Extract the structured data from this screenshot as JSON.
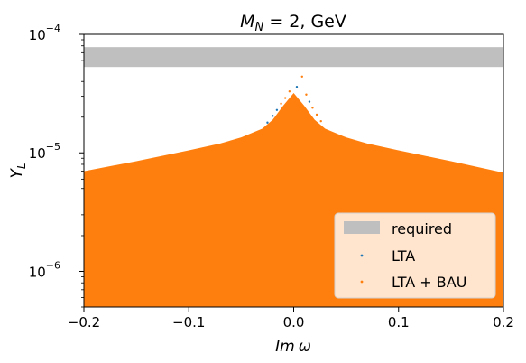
{
  "chart_data": {
    "type": "scatter",
    "title": "M_N = 2, GeV",
    "title_parts": {
      "symbol": "M",
      "subscript": "N",
      "rest": " = 2, GeV"
    },
    "xlabel": "Im ω",
    "xlabel_parts": {
      "italic": "Im",
      "symbol": "ω"
    },
    "ylabel": "Y_L",
    "ylabel_parts": {
      "symbol": "Y",
      "subscript": "L"
    },
    "xlim": [
      -0.2,
      0.2
    ],
    "ylim": [
      5e-07,
      0.0001
    ],
    "yscale": "log",
    "x_ticks": [
      {
        "value": -0.2,
        "label": "−0.2"
      },
      {
        "value": -0.1,
        "label": "−0.1"
      },
      {
        "value": 0.0,
        "label": "0.0"
      },
      {
        "value": 0.1,
        "label": "0.1"
      },
      {
        "value": 0.2,
        "label": "0.2"
      }
    ],
    "y_ticks": [
      {
        "value": 1e-06,
        "base": "10",
        "exp": "−6"
      },
      {
        "value": 1e-05,
        "base": "10",
        "exp": "−5"
      },
      {
        "value": 0.0001,
        "base": "10",
        "exp": "−4"
      }
    ],
    "required_band": {
      "name": "required",
      "y_min": 5.3e-05,
      "y_max": 7.8e-05,
      "color": "#bfbfbf"
    },
    "envelope": {
      "x": [
        -0.2,
        -0.15,
        -0.1,
        -0.07,
        -0.05,
        -0.03,
        -0.02,
        -0.01,
        0.0,
        0.01,
        0.02,
        0.03,
        0.05,
        0.07,
        0.1,
        0.15,
        0.2
      ],
      "y_upper": [
        7e-06,
        8.5e-06,
        1.05e-05,
        1.2e-05,
        1.35e-05,
        1.6e-05,
        1.9e-05,
        2.5e-05,
        3.2e-05,
        2.5e-05,
        1.9e-05,
        1.6e-05,
        1.35e-05,
        1.2e-05,
        1.05e-05,
        8.5e-06,
        6.8e-06
      ],
      "y_lower": 5e-07
    },
    "peak_points": [
      {
        "x": 0.008,
        "y": 4.4e-05
      },
      {
        "x": 0.003,
        "y": 3.6e-05
      },
      {
        "x": -0.004,
        "y": 3.3e-05
      },
      {
        "x": 0.012,
        "y": 3.1e-05
      },
      {
        "x": -0.008,
        "y": 2.9e-05
      },
      {
        "x": 0.015,
        "y": 2.7e-05
      },
      {
        "x": -0.012,
        "y": 2.6e-05
      },
      {
        "x": 0.001,
        "y": 2.8e-05
      },
      {
        "x": 0.018,
        "y": 2.4e-05
      },
      {
        "x": -0.016,
        "y": 2.3e-05
      },
      {
        "x": 0.006,
        "y": 2.5e-05
      },
      {
        "x": -0.002,
        "y": 2.2e-05
      },
      {
        "x": 0.022,
        "y": 2.1e-05
      },
      {
        "x": -0.02,
        "y": 2.05e-05
      },
      {
        "x": 0.01,
        "y": 2e-05
      },
      {
        "x": -0.006,
        "y": 1.95e-05
      },
      {
        "x": 0.026,
        "y": 1.85e-05
      },
      {
        "x": -0.025,
        "y": 1.8e-05
      },
      {
        "x": 0.004,
        "y": 1.1e-05
      },
      {
        "x": -0.01,
        "y": 9.5e-06
      },
      {
        "x": 0.014,
        "y": 1e-05
      }
    ],
    "series": [
      {
        "name": "LTA",
        "color": "#1f77b4"
      },
      {
        "name": "LTA + BAU",
        "color": "#ff7f0e"
      }
    ],
    "legend_position": "lower-right",
    "grid": false
  }
}
